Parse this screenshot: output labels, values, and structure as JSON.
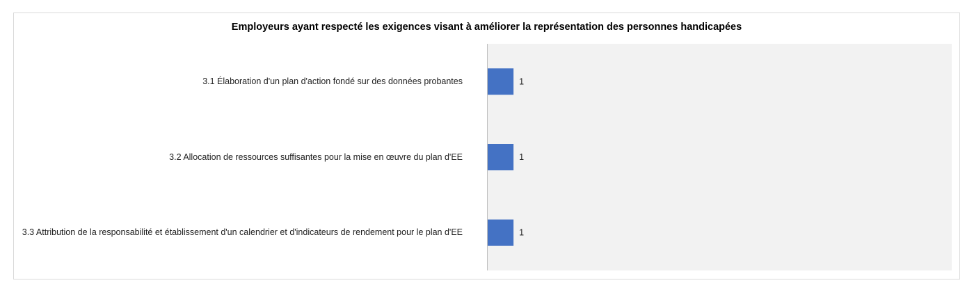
{
  "chart_data": {
    "type": "bar",
    "orientation": "horizontal",
    "title": "Employeurs ayant respecté les exigences visant à améliorer la représentation des personnes handicapées",
    "categories": [
      "3.1 Élaboration d'un plan d'action fondé sur des données probantes",
      "3.2 Allocation de ressources suffisantes pour la mise en œuvre du plan d'EE",
      "3.3 Attribution de la responsabilité et établissement d'un calendrier et d'indicateurs de rendement pour le plan d'EE"
    ],
    "values": [
      1,
      1,
      1
    ],
    "data_labels": [
      "1",
      "1",
      "1"
    ],
    "xlim": [
      0,
      18
    ],
    "grid": false,
    "legend": "none",
    "colors": {
      "bar": "#4472c4",
      "plot_area": "#f2f2f2",
      "axis": "#bfbfbf"
    }
  }
}
